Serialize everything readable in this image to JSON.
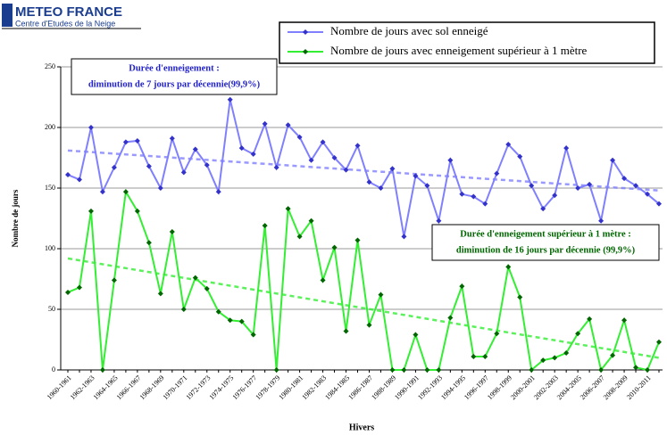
{
  "logo": {
    "title": "METEO FRANCE",
    "subtitle": "Centre d'Etudes de la Neige"
  },
  "chart_data": {
    "type": "line",
    "y_label": "Nombre de jours",
    "x_label": "Hivers",
    "categories": [
      "1960-1961",
      null,
      "1962-1963",
      null,
      "1964-1965",
      null,
      "1966-1967",
      null,
      "1968-1969",
      null,
      "1970-1971",
      null,
      "1972-1973",
      null,
      "1974-1975",
      null,
      "1976-1977",
      null,
      "1978-1979",
      null,
      "1980-1981",
      null,
      "1982-1983",
      null,
      "1984-1985",
      null,
      "1986-1987",
      null,
      "1988-1989",
      null,
      "1990-1991",
      null,
      "1992-1993",
      null,
      "1994-1995",
      null,
      "1996-1997",
      null,
      "1998-1999",
      null,
      "2000-2001",
      null,
      "2002-2003",
      null,
      "2004-2005",
      null,
      "2006-2007",
      null,
      "2008-2009",
      null,
      "2010-2011",
      null
    ],
    "series": [
      {
        "name": "Nombre de jours avec sol enneigé",
        "color": "#8080ff",
        "marker_color": "#3333cc",
        "trend": [
          181,
          148
        ],
        "values": [
          161,
          157,
          200,
          147,
          167,
          188,
          189,
          168,
          150,
          191,
          163,
          182,
          169,
          147,
          223,
          183,
          178,
          203,
          167,
          202,
          192,
          173,
          188,
          175,
          165,
          185,
          155,
          150,
          166,
          110,
          160,
          152,
          123,
          173,
          145,
          143,
          137,
          162,
          186,
          176,
          152,
          133,
          144,
          183,
          150,
          153,
          123,
          173,
          158,
          152,
          145,
          137
        ]
      },
      {
        "name": "Nombre de jours avec enneigement supérieur à 1 mètre",
        "color": "#33ee33",
        "marker_color": "#006600",
        "trend": [
          92,
          10
        ],
        "values": [
          64,
          68,
          131,
          0,
          74,
          147,
          131,
          105,
          63,
          114,
          50,
          76,
          67,
          48,
          41,
          40,
          29,
          119,
          0,
          133,
          110,
          123,
          74,
          101,
          32,
          107,
          37,
          62,
          0,
          0,
          29,
          0,
          0,
          43,
          69,
          11,
          11,
          30,
          85,
          60,
          0,
          8,
          10,
          14,
          30,
          42,
          0,
          12,
          41,
          2,
          0,
          23
        ]
      }
    ],
    "ylim": [
      0,
      250
    ],
    "yticks": [
      0,
      50,
      100,
      150,
      200,
      250
    ],
    "grid": true,
    "annotations": [
      {
        "lines": [
          "Durée d'enneigement :",
          "diminution de 7 jours par décennie(99,9%)"
        ],
        "color": "#2222cc"
      },
      {
        "lines": [
          "Durée d'enneigement supérieur à 1 mètre :",
          "diminution de 16 jours par décennie (99,9%)"
        ],
        "color": "#006600"
      }
    ]
  }
}
